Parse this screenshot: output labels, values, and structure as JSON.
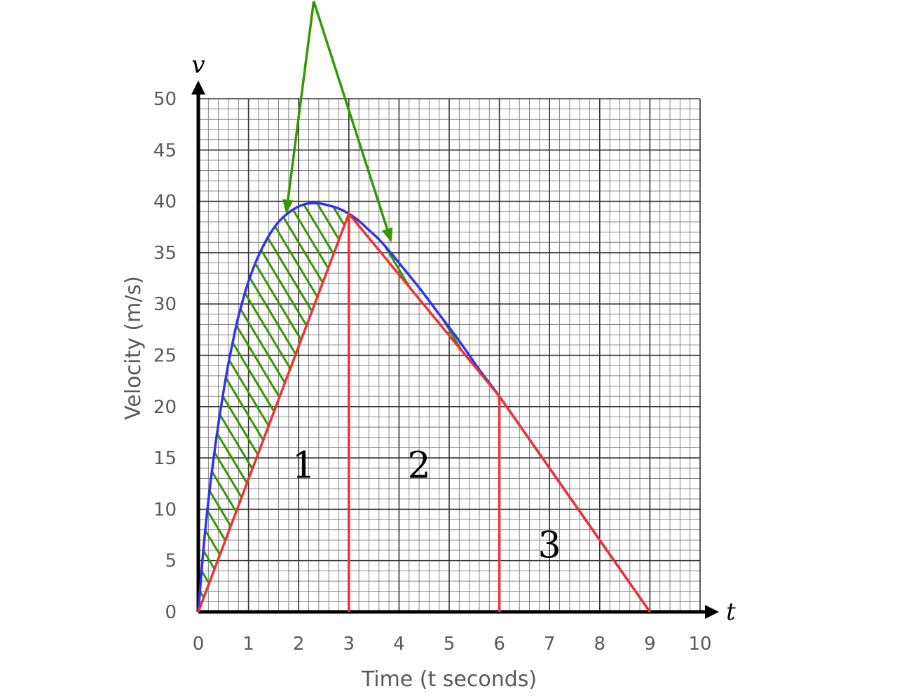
{
  "chart_data": {
    "type": "line",
    "title": "",
    "xlabel": "Time (t seconds)",
    "ylabel": "Velocity (m/s)",
    "x_axis_var": "t",
    "y_axis_var": "v",
    "xlim": [
      0,
      10
    ],
    "ylim": [
      0,
      50
    ],
    "x_ticks": [
      "0",
      "1",
      "2",
      "3",
      "4",
      "5",
      "6",
      "7",
      "8",
      "9",
      "10"
    ],
    "y_ticks": [
      "0",
      "5",
      "10",
      "15",
      "20",
      "25",
      "30",
      "35",
      "40",
      "45",
      "50"
    ],
    "grid": "on (minor 0.2 s by 1 m/s, major 1 s by 5 m/s)",
    "series": [
      {
        "color": "#3333ee",
        "x": [
          0,
          0.1,
          0.2,
          0.3,
          0.4,
          0.5,
          0.6,
          0.7,
          0.8,
          1.0,
          1.2,
          1.4,
          1.6,
          1.8,
          2.0,
          2.2,
          2.4,
          2.6,
          2.8,
          3.0,
          3.2,
          3.4,
          3.6,
          3.8,
          4.0,
          4.4,
          4.8,
          5.2,
          5.6,
          6.0,
          6.5,
          7.0,
          7.5,
          8.0,
          8.5,
          9.0
        ],
        "y": [
          0,
          6.0,
          10.8,
          14.8,
          18.3,
          21.4,
          24.2,
          26.6,
          28.8,
          32.2,
          34.7,
          36.6,
          38.0,
          38.9,
          39.5,
          39.8,
          39.8,
          39.6,
          39.3,
          38.8,
          38.1,
          37.2,
          36.3,
          35.2,
          34.0,
          31.6,
          29.0,
          26.4,
          23.6,
          21.0,
          17.5,
          14.0,
          10.5,
          7.0,
          3.5,
          0
        ]
      },
      {
        "color": "#ee3333",
        "x": [
          0,
          3,
          6,
          9
        ],
        "y": [
          0,
          38.8,
          21.0,
          0
        ]
      }
    ],
    "vertical_lines": [
      {
        "x": 3,
        "y_top": 38.8,
        "color": "#ee3333"
      },
      {
        "x": 6,
        "y_top": 21.0,
        "color": "#ee3333"
      }
    ],
    "hatched_region": {
      "between": "curve and straight lines",
      "color": "#339900"
    },
    "annotation_arrows": {
      "color": "#339900",
      "from": [
        2.3,
        59.5
      ],
      "to": [
        [
          1.75,
          38.8
        ],
        [
          3.85,
          36.0
        ]
      ]
    },
    "region_labels": [
      {
        "text": "1",
        "x": 2.1,
        "y": 14.3
      },
      {
        "text": "2",
        "x": 4.4,
        "y": 14.3
      },
      {
        "text": "3",
        "x": 7.0,
        "y": 6.5
      }
    ]
  }
}
